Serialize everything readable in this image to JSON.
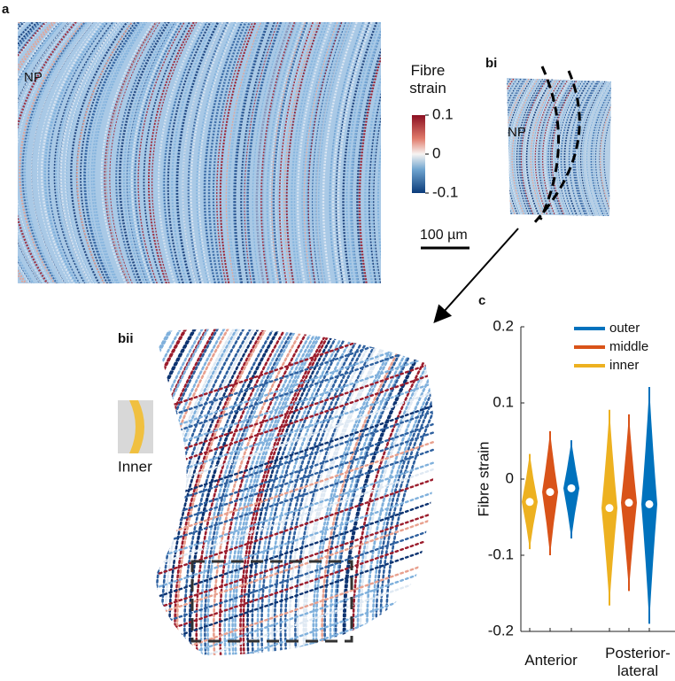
{
  "panel_labels": {
    "a": "a",
    "bi": "bi",
    "bii": "bii",
    "c": "c"
  },
  "image_a": {
    "label": "NP"
  },
  "image_bi": {
    "label": "NP"
  },
  "image_bii": {
    "inset_label": "Inner"
  },
  "colorbar": {
    "title": "Fibre strain",
    "lim": [
      -0.1,
      0.1
    ],
    "ticks": [
      0.1,
      0,
      -0.1
    ]
  },
  "scale_bar": {
    "label": "100 µm"
  },
  "chart_data": {
    "type": "violin",
    "ylabel": "Fibre strain",
    "categories": [
      "Anterior",
      "Posterior-lateral"
    ],
    "series": [
      {
        "name": "inner",
        "color": "#edb120",
        "median": [
          -0.03,
          -0.038
        ],
        "min": [
          -0.092,
          -0.166
        ],
        "max": [
          0.033,
          0.091
        ]
      },
      {
        "name": "middle",
        "color": "#d95319",
        "median": [
          -0.017,
          -0.031
        ],
        "min": [
          -0.1,
          -0.147
        ],
        "max": [
          0.063,
          0.085
        ]
      },
      {
        "name": "outer",
        "color": "#0072bd",
        "median": [
          -0.012,
          -0.033
        ],
        "min": [
          -0.078,
          -0.19
        ],
        "max": [
          0.051,
          0.121
        ]
      }
    ],
    "legend_order": [
      "outer",
      "middle",
      "inner"
    ],
    "ylim": [
      -0.2,
      0.2
    ],
    "yticks": [
      -0.2,
      -0.1,
      0,
      0.1,
      0.2
    ]
  }
}
